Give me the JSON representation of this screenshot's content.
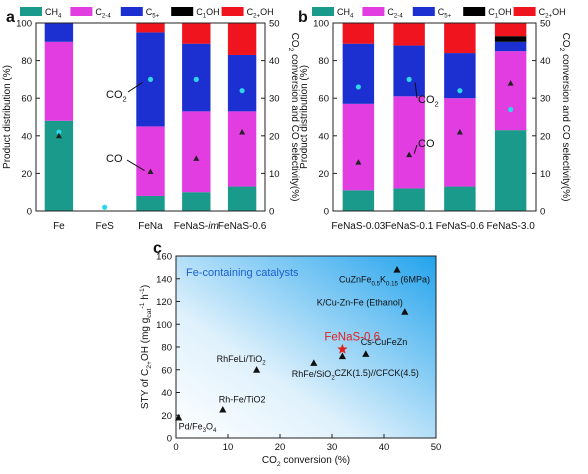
{
  "colors": {
    "CH4": "#1a9a8a",
    "C2-4": "#e23de0",
    "C5+": "#1c2fd0",
    "C1OH": "#000000",
    "C2+OH": "#f0141e",
    "co2_marker": "#2fd6e8",
    "co_marker": "#222222",
    "star": "#e32020",
    "panel_c_label": "#1a5fd0",
    "panel_c_gradient_start": "#ffffff",
    "panel_c_gradient_end": "#23a3ec"
  },
  "legend": [
    {
      "key": "CH4",
      "label": "CH4"
    },
    {
      "key": "C2-4",
      "label": "C2-4"
    },
    {
      "key": "C5+",
      "label": "C5+"
    },
    {
      "key": "C1OH",
      "label": "C1OH"
    },
    {
      "key": "C2+OH",
      "label": "C2+OH"
    }
  ],
  "chart_data": [
    {
      "panel": "a",
      "type": "bar",
      "stacked": true,
      "ylabel": "Product distribution (%)",
      "y2label": "CO2 conversion and CO selectivity(%)",
      "ylim": [
        0,
        100
      ],
      "y2lim": [
        0,
        50
      ],
      "yticks": [
        0,
        20,
        40,
        60,
        80,
        100
      ],
      "y2ticks": [
        0,
        10,
        20,
        30,
        40,
        50
      ],
      "categories": [
        "Fe",
        "FeS",
        "FeNa",
        "FeNaS-im",
        "FeNaS-0.6"
      ],
      "series": [
        {
          "name": "CH4",
          "values": [
            48,
            0,
            8,
            10,
            13
          ]
        },
        {
          "name": "C2-4",
          "values": [
            42,
            0,
            37,
            43,
            40
          ]
        },
        {
          "name": "C5+",
          "values": [
            10,
            0,
            50,
            36,
            30
          ]
        },
        {
          "name": "C1OH",
          "values": [
            0,
            0,
            0,
            0,
            0
          ]
        },
        {
          "name": "C2+OH",
          "values": [
            0,
            0,
            5,
            11,
            17
          ]
        }
      ],
      "co2_conversion": [
        21,
        1,
        35,
        35,
        32
      ],
      "co_selectivity": [
        20,
        null,
        10.5,
        14,
        21
      ],
      "annotations": [
        {
          "text": "CO2"
        },
        {
          "text": "CO"
        }
      ]
    },
    {
      "panel": "b",
      "type": "bar",
      "stacked": true,
      "ylabel": "Product distribution (%)",
      "y2label": "CO2 conversion and CO selectivity(%)",
      "ylim": [
        0,
        100
      ],
      "y2lim": [
        0,
        50
      ],
      "yticks": [
        0,
        20,
        40,
        60,
        80,
        100
      ],
      "y2ticks": [
        0,
        10,
        20,
        30,
        40,
        50
      ],
      "categories": [
        "FeNaS-0.03",
        "FeNaS-0.1",
        "FeNaS-0.6",
        "FeNaS-3.0"
      ],
      "series": [
        {
          "name": "CH4",
          "values": [
            11,
            12,
            13,
            43
          ]
        },
        {
          "name": "C2-4",
          "values": [
            46,
            49,
            47,
            42
          ]
        },
        {
          "name": "C5+",
          "values": [
            32,
            27,
            24,
            5
          ]
        },
        {
          "name": "C1OH",
          "values": [
            0,
            0,
            0,
            3
          ]
        },
        {
          "name": "C2+OH",
          "values": [
            11,
            12,
            16,
            7
          ]
        }
      ],
      "co2_conversion": [
        33,
        35,
        32,
        27
      ],
      "co_selectivity": [
        13,
        15,
        21,
        34
      ],
      "annotations": [
        {
          "text": "CO2"
        },
        {
          "text": "CO"
        }
      ]
    },
    {
      "panel": "c",
      "type": "scatter",
      "xlabel": "CO2 conversion (%)",
      "ylabel": "STY of C2+OH (mg gcat-1 h-1)",
      "xlim": [
        0,
        50
      ],
      "ylim": [
        0,
        160
      ],
      "xticks": [
        0,
        10,
        20,
        30,
        40,
        50
      ],
      "yticks": [
        0,
        20,
        40,
        60,
        80,
        100,
        120,
        140,
        160
      ],
      "title_in_plot": "Fe-containing catalysts",
      "points": [
        {
          "label": "Pd/Fe3O4",
          "x": 0.5,
          "y": 18
        },
        {
          "label": "Rh-Fe/TiO2",
          "x": 9,
          "y": 25
        },
        {
          "label": "RhFeLi/TiO2",
          "x": 15.5,
          "y": 60
        },
        {
          "label": "RhFe/SiO2",
          "x": 26.5,
          "y": 66
        },
        {
          "label": "CZK(1.5)//CFCK(4.5)",
          "x": 32,
          "y": 72
        },
        {
          "label": "Cs-CuFeZn",
          "x": 36.5,
          "y": 74
        },
        {
          "label": "K/Cu-Zn-Fe (Ethanol)",
          "x": 44,
          "y": 111
        },
        {
          "label": "CuZnFe0.5K0.15 (6MPa)",
          "x": 42.5,
          "y": 148
        }
      ],
      "highlight": {
        "label": "FeNaS-0.6",
        "x": 32,
        "y": 78
      }
    }
  ]
}
